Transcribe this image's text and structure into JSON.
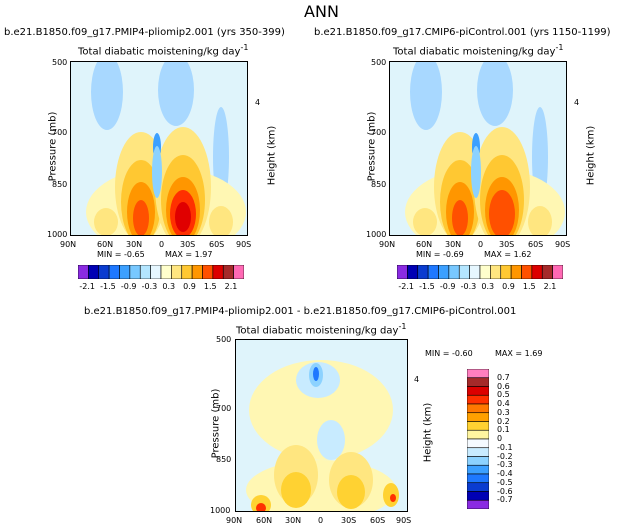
{
  "main_title": "ANN",
  "chart_data": [
    {
      "type": "heatmap",
      "title": "b.e21.B1850.f09_g17.PMIP4-pliomip2.001 (yrs 350-399)",
      "subtitle": "Total diabatic moistening/kg day",
      "subtitle_exp": "-1",
      "xlabel": "",
      "ylabel": "Pressure (mb)",
      "y2label": "Height (km)",
      "x_ticks": [
        "90N",
        "60N",
        "30N",
        "0",
        "30S",
        "60S",
        "90S"
      ],
      "y_ticks": [
        "500",
        "700",
        "850",
        "1000"
      ],
      "y2_ticks": [
        "4"
      ],
      "min_label": "MIN = -0.65",
      "max_label": "MAX = 1.97",
      "colorbar_labels": [
        "-2.1",
        "-1.5",
        "-0.9",
        "-0.3",
        "0.3",
        "0.9",
        "1.5",
        "2.1"
      ],
      "colorbar_levels": [
        -2.1,
        -1.8,
        -1.5,
        -1.2,
        -0.9,
        -0.6,
        -0.3,
        0,
        0.3,
        0.6,
        0.9,
        1.2,
        1.5,
        1.8,
        2.1
      ]
    },
    {
      "type": "heatmap",
      "title": "b.e21.B1850.f09_g17.CMIP6-piControl.001 (yrs 1150-1199)",
      "subtitle": "Total diabatic moistening/kg day",
      "subtitle_exp": "-1",
      "xlabel": "",
      "ylabel": "Pressure (mb)",
      "y2label": "Height (km)",
      "x_ticks": [
        "90N",
        "60N",
        "30N",
        "0",
        "30S",
        "60S",
        "90S"
      ],
      "y_ticks": [
        "500",
        "700",
        "850",
        "1000"
      ],
      "y2_ticks": [
        "4"
      ],
      "min_label": "MIN = -0.69",
      "max_label": "MAX = 1.62",
      "colorbar_labels": [
        "-2.1",
        "-1.5",
        "-0.9",
        "-0.3",
        "0.3",
        "0.9",
        "1.5",
        "2.1"
      ],
      "colorbar_levels": [
        -2.1,
        -1.8,
        -1.5,
        -1.2,
        -0.9,
        -0.6,
        -0.3,
        0,
        0.3,
        0.6,
        0.9,
        1.2,
        1.5,
        1.8,
        2.1
      ]
    },
    {
      "type": "heatmap",
      "title": "b.e21.B1850.f09_g17.PMIP4-pliomip2.001 - b.e21.B1850.f09_g17.CMIP6-piControl.001",
      "subtitle": "Total diabatic moistening/kg day",
      "subtitle_exp": "-1",
      "xlabel": "",
      "ylabel": "Pressure (mb)",
      "y2label": "Height (km)",
      "x_ticks": [
        "90N",
        "60N",
        "30N",
        "0",
        "30S",
        "60S",
        "90S"
      ],
      "y_ticks": [
        "500",
        "700",
        "850",
        "1000"
      ],
      "y2_ticks": [
        "4"
      ],
      "min_label": "MIN = -0.60",
      "max_label": "MAX = 1.69",
      "colorbar_labels": [
        "0.7",
        "0.6",
        "0.5",
        "0.4",
        "0.3",
        "0.2",
        "0.1",
        "0",
        "-0.1",
        "-0.2",
        "-0.3",
        "-0.4",
        "-0.5",
        "-0.6",
        "-0.7"
      ]
    }
  ],
  "colors": {
    "cb1": [
      "#8a2be2",
      "#0000b4",
      "#0a3cd0",
      "#1e78ff",
      "#3ca0ff",
      "#78c8ff",
      "#b4e6ff",
      "#e6f7ff",
      "#ffffcc",
      "#ffe680",
      "#ffc832",
      "#ff9600",
      "#ff5000",
      "#dc0000",
      "#a52a2a",
      "#ff69b4"
    ],
    "cb3": [
      "#ff7fbf",
      "#a52a2a",
      "#dc0000",
      "#ff3000",
      "#ff7800",
      "#ffa000",
      "#ffd232",
      "#fff5a0",
      "#f5faff",
      "#c8ebff",
      "#8cd2ff",
      "#3ca0ff",
      "#1e78ff",
      "#0a3cd0",
      "#0000b4",
      "#8a2be2"
    ]
  }
}
